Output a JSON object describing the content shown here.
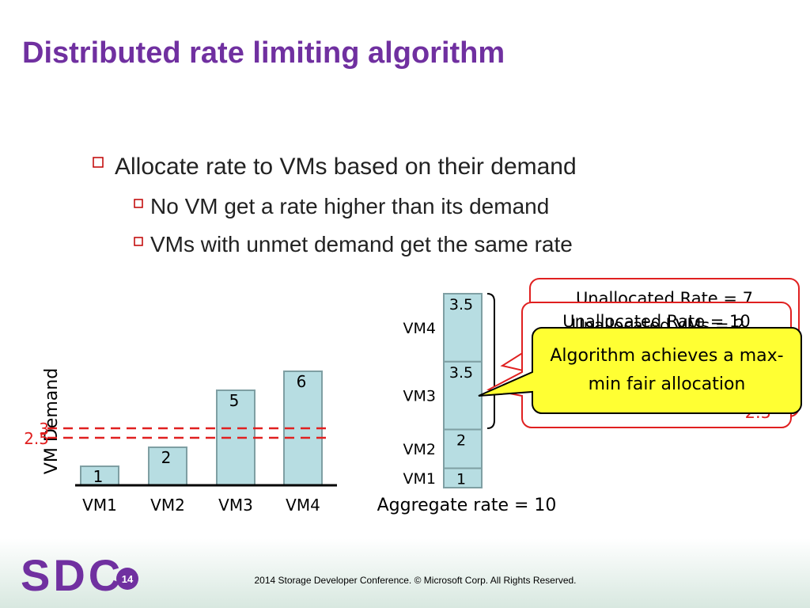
{
  "title": "Distributed rate limiting algorithm",
  "bullets": [
    {
      "text": "Allocate rate to VMs based on their demand",
      "sub": [
        "No VM get a rate higher than its demand",
        "VMs with unmet demand get the same rate"
      ]
    }
  ],
  "demand_chart": {
    "type": "bar",
    "y_label": "VM Demand",
    "categories": [
      "VM1",
      "VM2",
      "VM3",
      "VM4"
    ],
    "values": [
      1,
      2,
      5,
      6
    ],
    "color": "#b7dde2",
    "thresholds": [
      3,
      2.5
    ],
    "threshold_color": "#e02020"
  },
  "allocation_chart": {
    "type": "stacked-bar",
    "categories": [
      "VM1",
      "VM2",
      "VM3",
      "VM4"
    ],
    "values": [
      1,
      2,
      3.5,
      3.5
    ],
    "color": "#b7dde2",
    "label": "Aggregate rate = 10"
  },
  "callouts": [
    "Unallocated Rate = 7",
    "Unallocated Rate = 10",
    "Unallocated VMs = 2",
    "2.5"
  ],
  "conclusion": "Algorithm achieves a max-min fair allocation",
  "footer": "2014 Storage  Developer Conference. © Microsoft Corp.  All Rights Reserved.",
  "logo": {
    "text": "SDC",
    "year": "14"
  }
}
